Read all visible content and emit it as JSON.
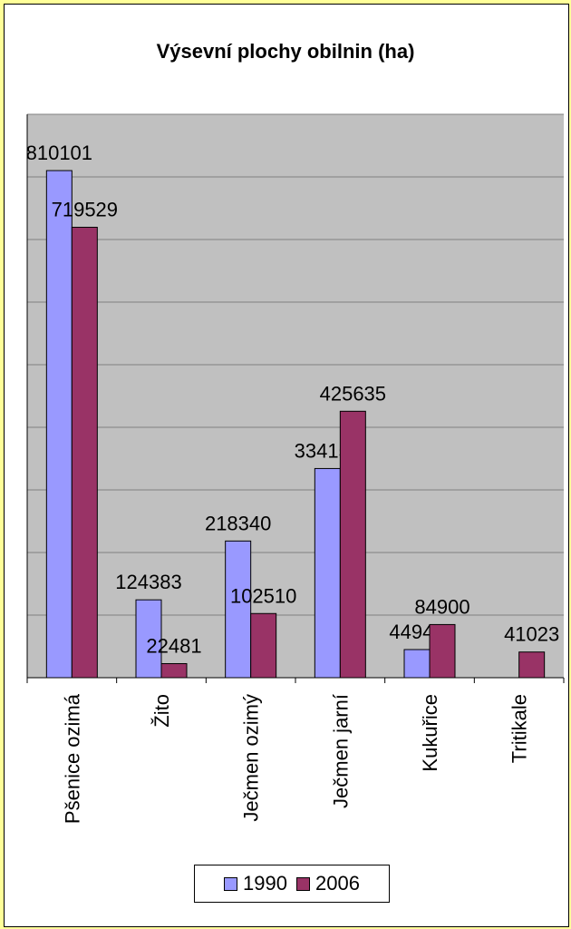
{
  "chart_data": {
    "type": "bar",
    "title": "Výsevní plochy obilnin (ha)",
    "categories": [
      "Pšenice ozimá",
      "Žito",
      "Ječmen ozimý",
      "Ječmen jarní",
      "Kukuřice",
      "Tritikale"
    ],
    "series": [
      {
        "name": "1990",
        "color": "#9999ff",
        "values": [
          810101,
          124383,
          218340,
          334150,
          44941,
          null
        ],
        "labels": [
          "810101",
          "124383",
          "218340",
          "334150",
          "44941",
          ""
        ]
      },
      {
        "name": "2006",
        "color": "#993366",
        "values": [
          719529,
          22481,
          102510,
          425635,
          84900,
          41023
        ],
        "labels": [
          "719529",
          "22481",
          "102510",
          "425635",
          "84900",
          "41023"
        ]
      }
    ],
    "ylim": [
      0,
      900000
    ],
    "grid": true,
    "legend_position": "bottom",
    "plot_background": "#c0c0c0"
  }
}
